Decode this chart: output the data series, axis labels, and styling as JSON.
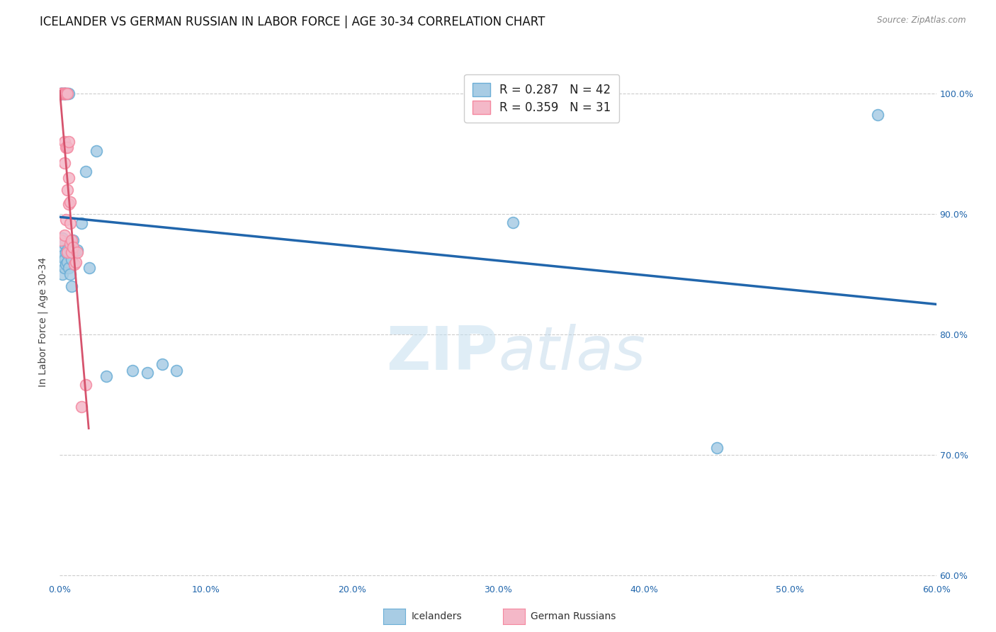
{
  "title": "ICELANDER VS GERMAN RUSSIAN IN LABOR FORCE | AGE 30-34 CORRELATION CHART",
  "source": "Source: ZipAtlas.com",
  "ylabel_label": "In Labor Force | Age 30-34",
  "xlim": [
    0.0,
    0.6
  ],
  "ylim": [
    0.595,
    1.025
  ],
  "blue_R": 0.287,
  "blue_N": 42,
  "pink_R": 0.359,
  "pink_N": 31,
  "blue_color": "#a8cce4",
  "pink_color": "#f4b8c8",
  "blue_edge_color": "#6baed6",
  "pink_edge_color": "#f4879f",
  "trendline_blue_color": "#2166ac",
  "trendline_pink_color": "#d6536d",
  "blue_label": "Icelanders",
  "pink_label": "German Russians",
  "blue_points_x": [
    0.001,
    0.001,
    0.001,
    0.001,
    0.002,
    0.002,
    0.002,
    0.002,
    0.002,
    0.003,
    0.003,
    0.003,
    0.003,
    0.003,
    0.003,
    0.004,
    0.004,
    0.004,
    0.005,
    0.005,
    0.005,
    0.006,
    0.006,
    0.007,
    0.007,
    0.008,
    0.008,
    0.009,
    0.01,
    0.012,
    0.015,
    0.018,
    0.02,
    0.025,
    0.032,
    0.05,
    0.06,
    0.07,
    0.08,
    0.31,
    0.45,
    0.56
  ],
  "blue_points_y": [
    1.0,
    1.0,
    1.0,
    0.87,
    1.0,
    1.0,
    0.88,
    0.865,
    0.85,
    1.0,
    1.0,
    1.0,
    0.875,
    0.862,
    0.855,
    1.0,
    0.868,
    0.858,
    1.0,
    0.87,
    0.86,
    1.0,
    0.855,
    0.87,
    0.85,
    0.862,
    0.84,
    0.878,
    0.87,
    0.87,
    0.892,
    0.935,
    0.855,
    0.952,
    0.765,
    0.77,
    0.768,
    0.775,
    0.77,
    0.893,
    0.706,
    0.982
  ],
  "pink_points_x": [
    0.001,
    0.001,
    0.002,
    0.002,
    0.003,
    0.003,
    0.003,
    0.003,
    0.003,
    0.003,
    0.004,
    0.004,
    0.004,
    0.005,
    0.005,
    0.005,
    0.005,
    0.006,
    0.006,
    0.006,
    0.007,
    0.007,
    0.007,
    0.008,
    0.008,
    0.009,
    0.01,
    0.011,
    0.012,
    0.015,
    0.018
  ],
  "pink_points_y": [
    1.0,
    0.878,
    1.0,
    1.0,
    1.0,
    1.0,
    1.0,
    0.96,
    0.942,
    0.882,
    1.0,
    0.955,
    0.895,
    1.0,
    0.955,
    0.92,
    0.868,
    0.96,
    0.93,
    0.908,
    0.91,
    0.892,
    0.875,
    0.878,
    0.868,
    0.872,
    0.858,
    0.86,
    0.868,
    0.74,
    0.758
  ],
  "grid_color": "#cccccc",
  "background_color": "#ffffff",
  "title_fontsize": 12,
  "axis_label_fontsize": 10,
  "tick_fontsize": 9,
  "legend_fontsize": 12
}
